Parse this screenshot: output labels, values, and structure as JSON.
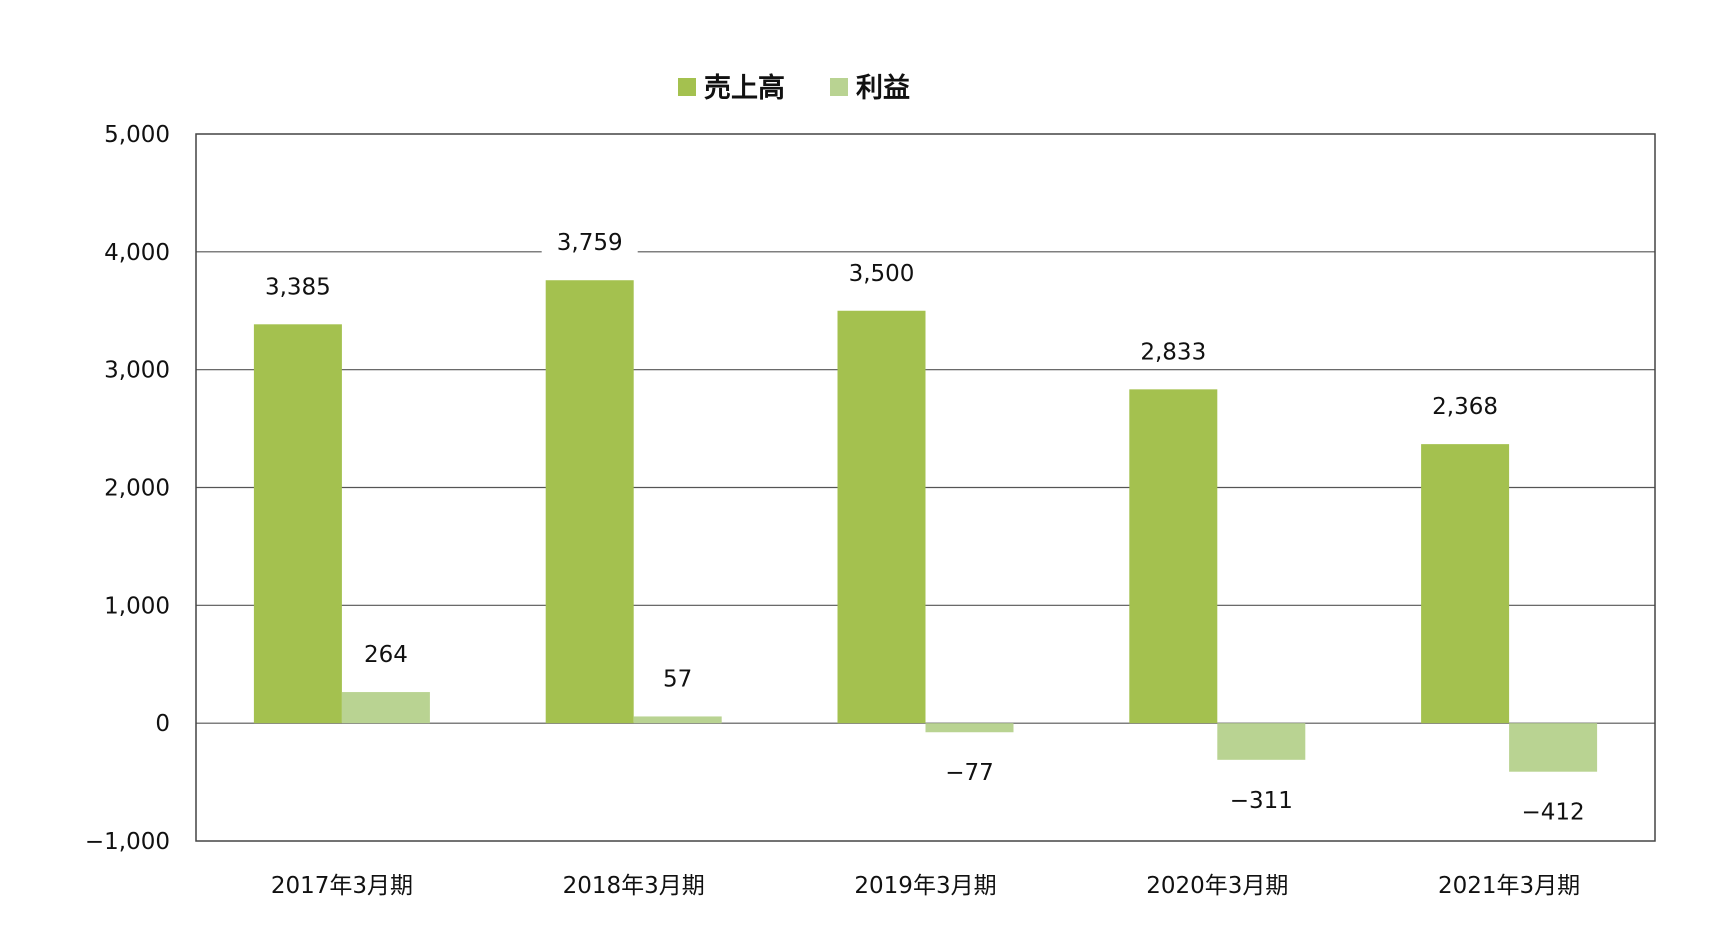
{
  "chart_data": {
    "type": "bar",
    "categories": [
      "2017年3月期",
      "2018年3月期",
      "2019年3月期",
      "2020年3月期",
      "2021年3月期"
    ],
    "series": [
      {
        "name": "売上高",
        "values": [
          3385,
          3759,
          3500,
          2833,
          2368
        ],
        "labels": [
          "3,385",
          "3,759",
          "3,500",
          "2,833",
          "2,368"
        ],
        "color": "#a4c14f"
      },
      {
        "name": "利益",
        "values": [
          264,
          57,
          -77,
          -311,
          -412
        ],
        "labels": [
          "264",
          "57",
          "−77",
          "−311",
          "−412"
        ],
        "color": "#b9d392"
      }
    ],
    "ylim": [
      -1000,
      5000
    ],
    "yticks": [
      -1000,
      0,
      1000,
      2000,
      3000,
      4000,
      5000
    ],
    "ytick_labels": [
      "−1,000",
      "0",
      "1,000",
      "2,000",
      "3,000",
      "4,000",
      "5,000"
    ],
    "grid": true,
    "legend_position": "top-center",
    "title": "",
    "xlabel": "",
    "ylabel": ""
  }
}
